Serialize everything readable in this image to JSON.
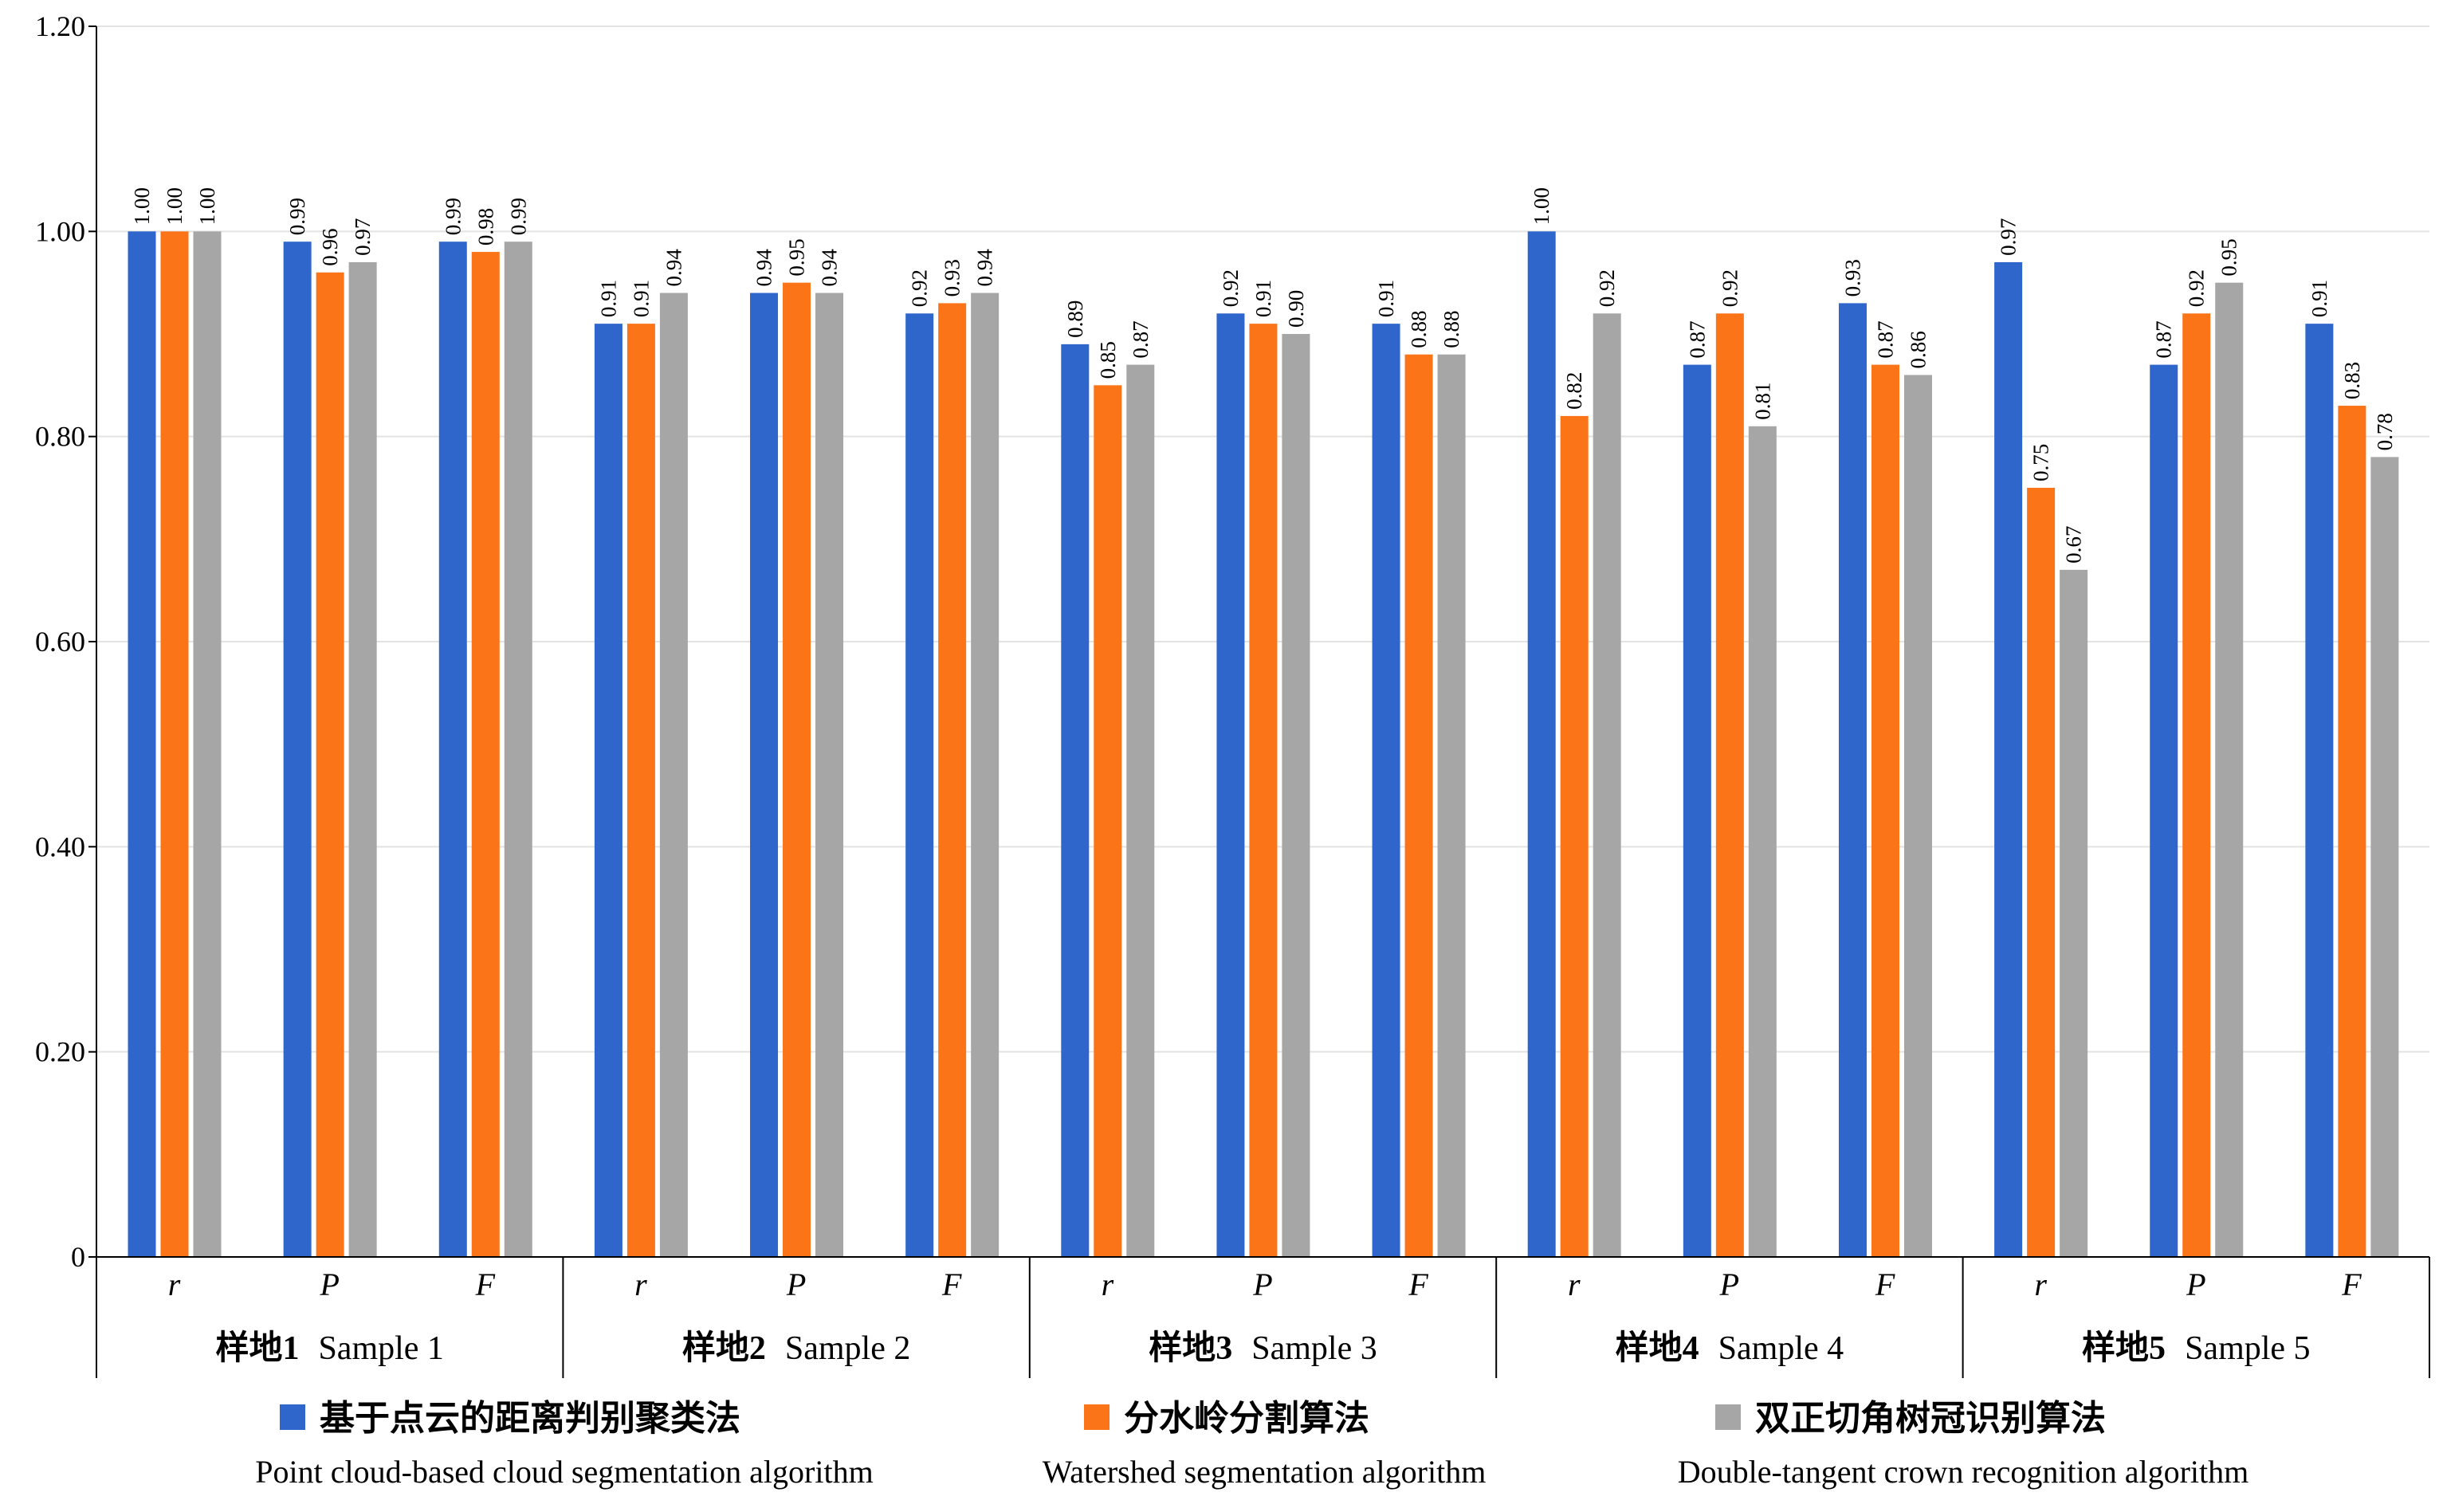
{
  "chart_data": {
    "type": "bar",
    "title": "",
    "ylim": [
      0,
      1.2
    ],
    "yticks": [
      "0",
      "0.20",
      "0.40",
      "0.60",
      "0.80",
      "1.00",
      "1.20"
    ],
    "ytick_values": [
      0,
      0.2,
      0.4,
      0.6,
      0.8,
      1.0,
      1.2
    ],
    "grid": true,
    "metrics": [
      "r",
      "P",
      "F"
    ],
    "groups": [
      {
        "label_cn": "样地1",
        "label_en": "Sample 1"
      },
      {
        "label_cn": "样地2",
        "label_en": "Sample 2"
      },
      {
        "label_cn": "样地3",
        "label_en": "Sample 3"
      },
      {
        "label_cn": "样地4",
        "label_en": "Sample 4"
      },
      {
        "label_cn": "样地5",
        "label_en": "Sample 5"
      }
    ],
    "legend_position": "bottom",
    "series": [
      {
        "name_cn": "基于点云的距离判别聚类法",
        "name_en": "Point cloud-based cloud segmentation algorithm",
        "color": "#2f66cc",
        "values": [
          1.0,
          0.99,
          0.99,
          0.91,
          0.94,
          0.92,
          0.89,
          0.92,
          0.91,
          1.0,
          0.87,
          0.93,
          0.97,
          0.87,
          0.91
        ]
      },
      {
        "name_cn": "分水岭分割算法",
        "name_en": "Watershed segmentation algorithm",
        "color": "#fc7418",
        "values": [
          1.0,
          0.96,
          0.98,
          0.91,
          0.95,
          0.93,
          0.85,
          0.91,
          0.88,
          0.82,
          0.92,
          0.87,
          0.75,
          0.92,
          0.83
        ]
      },
      {
        "name_cn": "双正切角树冠识别算法",
        "name_en": "Double-tangent crown recognition algorithm",
        "color": "#a6a6a6",
        "values": [
          1.0,
          0.97,
          0.99,
          0.94,
          0.94,
          0.94,
          0.87,
          0.9,
          0.88,
          0.92,
          0.81,
          0.86,
          0.67,
          0.95,
          0.78
        ]
      }
    ]
  }
}
